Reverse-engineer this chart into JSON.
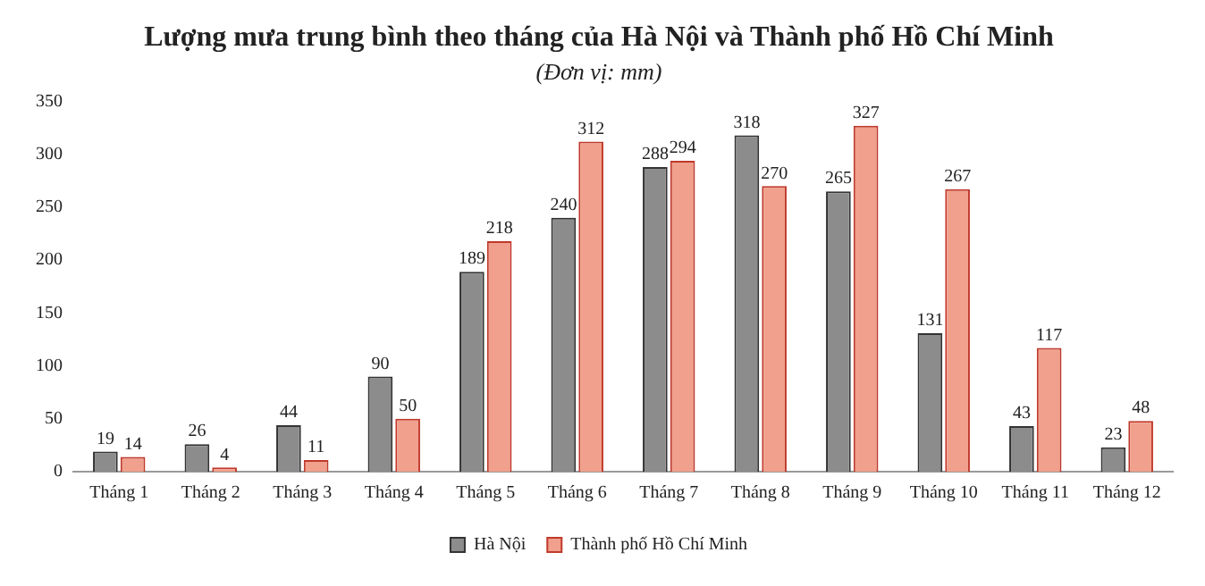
{
  "chart_data": {
    "type": "bar",
    "title": "Lượng mưa trung bình theo tháng của Hà Nội và Thành phố Hồ Chí Minh",
    "subtitle": "(Đơn vị: mm)",
    "categories": [
      "Tháng 1",
      "Tháng 2",
      "Tháng 3",
      "Tháng 4",
      "Tháng 5",
      "Tháng 6",
      "Tháng 7",
      "Tháng 8",
      "Tháng 9",
      "Tháng 10",
      "Tháng 11",
      "Tháng 12"
    ],
    "series": [
      {
        "name": "Hà Nội",
        "color": "#8c8c8c",
        "values": [
          19,
          26,
          44,
          90,
          189,
          240,
          288,
          318,
          265,
          131,
          43,
          23
        ]
      },
      {
        "name": "Thành phố Hồ Chí Minh",
        "color": "#f0a08c",
        "values": [
          14,
          4,
          11,
          50,
          218,
          312,
          294,
          270,
          327,
          267,
          117,
          48
        ]
      }
    ],
    "ylim": [
      0,
      350
    ],
    "yticks": [
      0,
      50,
      100,
      150,
      200,
      250,
      300,
      350
    ],
    "grid": false,
    "legend": "bottom",
    "data_labels": true
  }
}
